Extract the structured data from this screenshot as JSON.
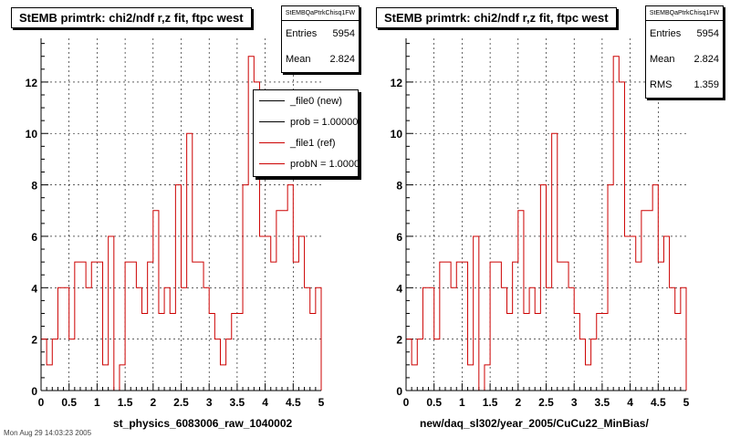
{
  "panels": [
    {
      "title": "StEMB primtrk: chi2/ndf r,z fit, ftpc west",
      "xlabel": "st_physics_6083006_raw_1040002",
      "stats": {
        "name": "StEMBQaPtrkChisq1FW",
        "rows": [
          {
            "label": "Entries",
            "value": "5954"
          },
          {
            "label": "Mean",
            "value": "2.824"
          }
        ]
      },
      "legend": [
        {
          "label": "_file0 (new)",
          "color": "#000000"
        },
        {
          "label": "prob = 1.000000",
          "color": "#000000"
        },
        {
          "label": "_file1 (ref)",
          "color": "#cc0000"
        },
        {
          "label": "probN = 1.000000",
          "color": "#cc0000"
        }
      ]
    },
    {
      "title": "StEMB primtrk: chi2/ndf r,z fit, ftpc west",
      "xlabel": "new/daq_sl302/year_2005/CuCu22_MinBias/",
      "stats": {
        "name": "StEMBQaPtrkChisq1FW",
        "rows": [
          {
            "label": "Entries",
            "value": "5954"
          },
          {
            "label": "Mean",
            "value": "2.824"
          },
          {
            "label": "RMS",
            "value": "1.359"
          }
        ]
      }
    }
  ],
  "chart_data": {
    "type": "histogram",
    "title": "StEMB primtrk: chi2/ndf r,z fit, ftpc west",
    "x_range": [
      0,
      5
    ],
    "y_range": [
      0,
      13.7
    ],
    "bin_width": 0.1,
    "x_ticks": [
      "0",
      "0.5",
      "1",
      "1.5",
      "2",
      "2.5",
      "3",
      "3.5",
      "4",
      "4.5",
      "5"
    ],
    "y_ticks": [
      "0",
      "2",
      "4",
      "6",
      "8",
      "10",
      "12"
    ],
    "grid": true,
    "line_color": "#cc0000",
    "values": [
      2,
      1,
      2,
      4,
      4,
      2,
      5,
      5,
      4,
      5,
      5,
      1,
      6,
      0,
      1,
      5,
      5,
      4,
      3,
      5,
      7,
      3,
      4,
      3,
      8,
      4,
      10,
      5,
      5,
      4,
      3,
      2,
      1,
      2,
      3,
      3,
      8,
      13,
      12,
      6,
      6,
      5,
      7,
      7,
      8,
      5,
      6,
      4,
      3,
      4
    ]
  },
  "footer": "Mon Aug 29 14:03:23 2005"
}
